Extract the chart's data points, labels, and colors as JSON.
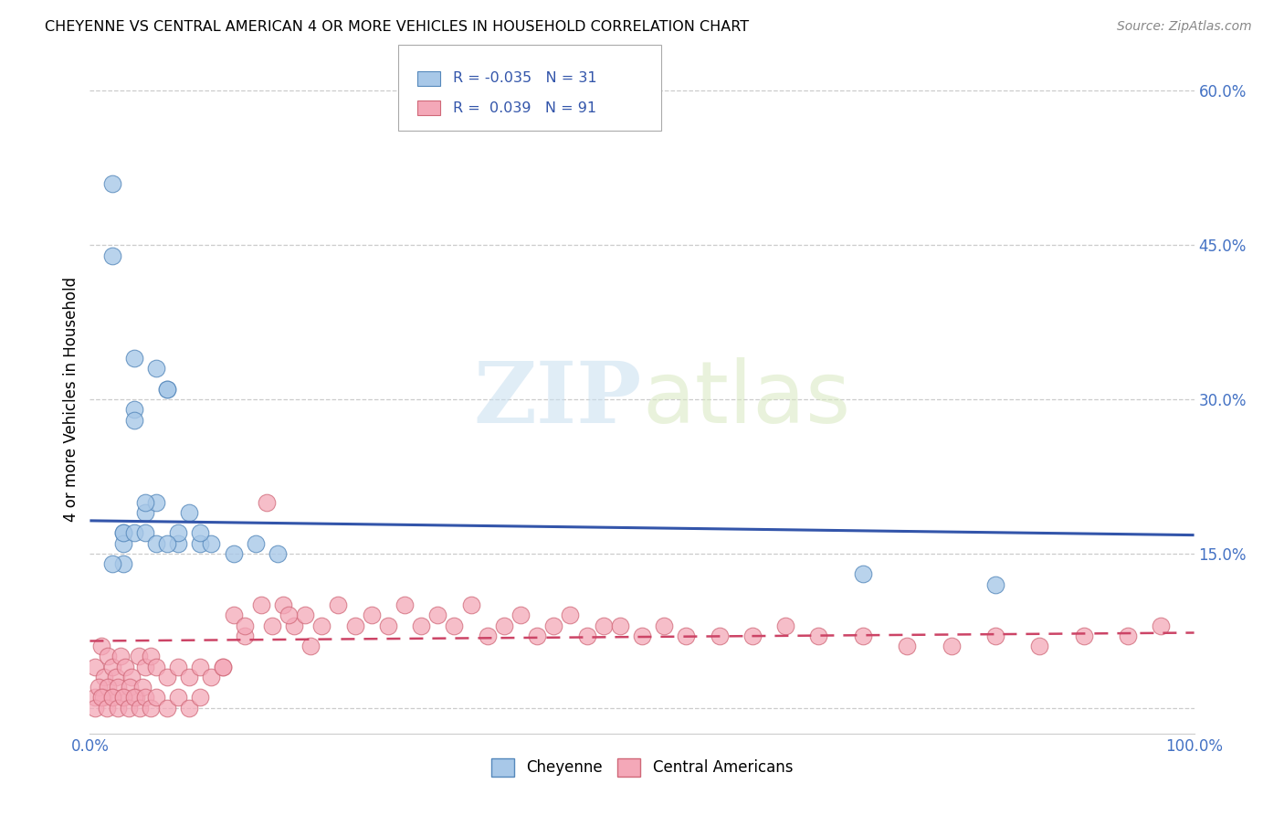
{
  "title": "CHEYENNE VS CENTRAL AMERICAN 4 OR MORE VEHICLES IN HOUSEHOLD CORRELATION CHART",
  "source": "Source: ZipAtlas.com",
  "ylabel": "4 or more Vehicles in Household",
  "xlim": [
    0.0,
    1.0
  ],
  "ylim": [
    -0.025,
    0.625
  ],
  "xticks": [
    0.0,
    0.1,
    0.2,
    0.3,
    0.4,
    0.5,
    0.6,
    0.7,
    0.8,
    0.9,
    1.0
  ],
  "xticklabels": [
    "0.0%",
    "",
    "",
    "",
    "",
    "",
    "",
    "",
    "",
    "",
    "100.0%"
  ],
  "yticks": [
    0.0,
    0.15,
    0.3,
    0.45,
    0.6
  ],
  "yticklabels": [
    "",
    "15.0%",
    "30.0%",
    "45.0%",
    "60.0%"
  ],
  "cheyenne_color": "#a8c8e8",
  "central_color": "#f4a8b8",
  "cheyenne_edge": "#5588bb",
  "central_edge": "#d06878",
  "line_cheyenne": "#3355aa",
  "line_central": "#cc4466",
  "watermark_zip": "ZIP",
  "watermark_atlas": "atlas",
  "legend_r_cheyenne": "-0.035",
  "legend_n_cheyenne": "31",
  "legend_r_central": "0.039",
  "legend_n_central": "91",
  "cheyenne_x": [
    0.02,
    0.03,
    0.04,
    0.05,
    0.06,
    0.07,
    0.08,
    0.09,
    0.1,
    0.11,
    0.13,
    0.15,
    0.17,
    0.7,
    0.82,
    0.02,
    0.03,
    0.04,
    0.05,
    0.06,
    0.08,
    0.1,
    0.03,
    0.04,
    0.07,
    0.02,
    0.03,
    0.04,
    0.05,
    0.06,
    0.07
  ],
  "cheyenne_y": [
    0.51,
    0.17,
    0.34,
    0.19,
    0.2,
    0.31,
    0.16,
    0.19,
    0.16,
    0.16,
    0.15,
    0.16,
    0.15,
    0.13,
    0.12,
    0.44,
    0.16,
    0.29,
    0.2,
    0.33,
    0.17,
    0.17,
    0.14,
    0.28,
    0.31,
    0.14,
    0.17,
    0.17,
    0.17,
    0.16,
    0.16
  ],
  "central_x": [
    0.005,
    0.01,
    0.013,
    0.016,
    0.02,
    0.024,
    0.028,
    0.032,
    0.038,
    0.044,
    0.05,
    0.005,
    0.008,
    0.012,
    0.016,
    0.02,
    0.025,
    0.03,
    0.036,
    0.042,
    0.048,
    0.055,
    0.06,
    0.07,
    0.08,
    0.09,
    0.1,
    0.11,
    0.12,
    0.13,
    0.14,
    0.155,
    0.165,
    0.175,
    0.185,
    0.195,
    0.21,
    0.225,
    0.24,
    0.255,
    0.27,
    0.285,
    0.3,
    0.315,
    0.33,
    0.345,
    0.36,
    0.375,
    0.39,
    0.405,
    0.42,
    0.435,
    0.45,
    0.465,
    0.005,
    0.01,
    0.015,
    0.02,
    0.025,
    0.03,
    0.035,
    0.04,
    0.045,
    0.05,
    0.055,
    0.06,
    0.07,
    0.08,
    0.09,
    0.1,
    0.48,
    0.5,
    0.52,
    0.54,
    0.57,
    0.6,
    0.63,
    0.66,
    0.7,
    0.74,
    0.78,
    0.82,
    0.86,
    0.9,
    0.94,
    0.97,
    0.12,
    0.14,
    0.16,
    0.18,
    0.2
  ],
  "central_y": [
    0.04,
    0.06,
    0.03,
    0.05,
    0.04,
    0.03,
    0.05,
    0.04,
    0.03,
    0.05,
    0.04,
    0.01,
    0.02,
    0.01,
    0.02,
    0.01,
    0.02,
    0.01,
    0.02,
    0.01,
    0.02,
    0.05,
    0.04,
    0.03,
    0.04,
    0.03,
    0.04,
    0.03,
    0.04,
    0.09,
    0.07,
    0.1,
    0.08,
    0.1,
    0.08,
    0.09,
    0.08,
    0.1,
    0.08,
    0.09,
    0.08,
    0.1,
    0.08,
    0.09,
    0.08,
    0.1,
    0.07,
    0.08,
    0.09,
    0.07,
    0.08,
    0.09,
    0.07,
    0.08,
    0.0,
    0.01,
    0.0,
    0.01,
    0.0,
    0.01,
    0.0,
    0.01,
    0.0,
    0.01,
    0.0,
    0.01,
    0.0,
    0.01,
    0.0,
    0.01,
    0.08,
    0.07,
    0.08,
    0.07,
    0.07,
    0.07,
    0.08,
    0.07,
    0.07,
    0.06,
    0.06,
    0.07,
    0.06,
    0.07,
    0.07,
    0.08,
    0.04,
    0.08,
    0.2,
    0.09,
    0.06
  ],
  "line_cheyenne_x0": 0.0,
  "line_cheyenne_y0": 0.182,
  "line_cheyenne_x1": 1.0,
  "line_cheyenne_y1": 0.168,
  "line_central_x0": 0.0,
  "line_central_y0": 0.065,
  "line_central_x1": 1.0,
  "line_central_y1": 0.073
}
